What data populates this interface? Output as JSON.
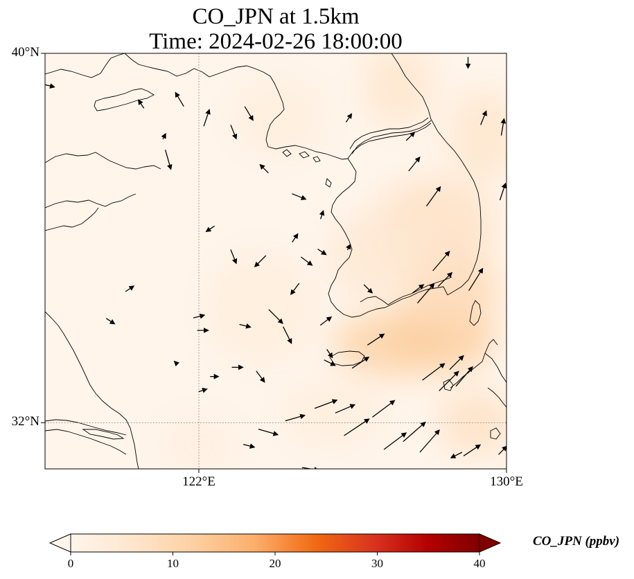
{
  "title": {
    "line1": "CO_JPN at 1.5km",
    "line2": "Time: 2024-02-26 18:00:00"
  },
  "map": {
    "lon_range": [
      118,
      130
    ],
    "lat_range": [
      31,
      40
    ],
    "lat_ticks": [
      {
        "value": 40,
        "label": "40°N"
      },
      {
        "value": 32,
        "label": "32°N"
      }
    ],
    "lon_ticks": [
      {
        "value": 122,
        "label": "122°E"
      },
      {
        "value": 130,
        "label": "130°E"
      }
    ],
    "gridlines": {
      "lon": [
        122
      ],
      "lat": [
        32
      ]
    },
    "colors": {
      "low": "#fff5eb",
      "high": "#7f0000",
      "coast": "#000000"
    }
  },
  "colorbar": {
    "label": "CO_JPN (ppbv)",
    "min": 0,
    "max": 40,
    "extend": "both",
    "ticks": [
      {
        "value": 0,
        "label": "0"
      },
      {
        "value": 10,
        "label": "10"
      },
      {
        "value": 20,
        "label": "20"
      },
      {
        "value": 30,
        "label": "30"
      },
      {
        "value": 40,
        "label": "40"
      }
    ],
    "stops": [
      {
        "value": 0,
        "color": "#fff5eb"
      },
      {
        "value": 6,
        "color": "#fee6ce"
      },
      {
        "value": 12,
        "color": "#fdd0a2"
      },
      {
        "value": 18,
        "color": "#fdae6b"
      },
      {
        "value": 24,
        "color": "#f16913"
      },
      {
        "value": 30,
        "color": "#d7301f"
      },
      {
        "value": 35,
        "color": "#b30000"
      },
      {
        "value": 40,
        "color": "#7f0000"
      }
    ]
  },
  "concentration_blobs": [
    {
      "lon": 127.1,
      "lat": 33.7,
      "rlon": 1.6,
      "rlat": 0.7,
      "value": 11
    },
    {
      "lon": 128.3,
      "lat": 33.9,
      "rlon": 1.4,
      "rlat": 0.8,
      "value": 12
    },
    {
      "lon": 128.6,
      "lat": 34.9,
      "rlon": 1.2,
      "rlat": 0.9,
      "value": 9
    },
    {
      "lon": 128.1,
      "lat": 36.2,
      "rlon": 1.6,
      "rlat": 1.1,
      "value": 7
    },
    {
      "lon": 127.2,
      "lat": 39.3,
      "rlon": 0.9,
      "rlat": 0.9,
      "value": 6
    },
    {
      "lon": 129.4,
      "lat": 38.2,
      "rlon": 0.9,
      "rlat": 1.0,
      "value": 6
    },
    {
      "lon": 129.2,
      "lat": 32.0,
      "rlon": 1.0,
      "rlat": 0.7,
      "value": 7
    },
    {
      "lon": 126.6,
      "lat": 35.6,
      "rlon": 1.2,
      "rlat": 1.0,
      "value": 5
    },
    {
      "lon": 123.6,
      "lat": 34.5,
      "rlon": 1.4,
      "rlat": 1.2,
      "value": 3
    },
    {
      "lon": 124.1,
      "lat": 38.6,
      "rlon": 1.2,
      "rlat": 0.8,
      "value": 3
    },
    {
      "lon": 122.0,
      "lat": 31.5,
      "rlon": 1.0,
      "rlat": 0.6,
      "value": 2.5
    },
    {
      "lon": 125.5,
      "lat": 32.2,
      "rlon": 1.3,
      "rlat": 0.7,
      "value": 3
    }
  ],
  "wind_vectors": [
    {
      "lon": 118.1,
      "lat": 39.3,
      "u": 0.4,
      "v": -0.1
    },
    {
      "lon": 121.1,
      "lat": 38.2,
      "u": 0.1,
      "v": 0.2
    },
    {
      "lon": 121.5,
      "lat": 39.0,
      "u": -0.3,
      "v": 0.5
    },
    {
      "lon": 122.2,
      "lat": 38.6,
      "u": 0.2,
      "v": 0.6
    },
    {
      "lon": 122.9,
      "lat": 38.3,
      "u": 0.2,
      "v": -0.5
    },
    {
      "lon": 123.3,
      "lat": 38.7,
      "u": 0.3,
      "v": -0.5
    },
    {
      "lon": 120.5,
      "lat": 38.9,
      "u": -0.2,
      "v": 0.3
    },
    {
      "lon": 123.7,
      "lat": 37.5,
      "u": -0.3,
      "v": 0.3
    },
    {
      "lon": 121.2,
      "lat": 37.7,
      "u": 0.2,
      "v": -0.7
    },
    {
      "lon": 124.6,
      "lat": 36.9,
      "u": 0.5,
      "v": -0.2
    },
    {
      "lon": 124.5,
      "lat": 36.0,
      "u": 0.2,
      "v": 0.3
    },
    {
      "lon": 124.8,
      "lat": 35.5,
      "u": 0.4,
      "v": -0.3
    },
    {
      "lon": 125.2,
      "lat": 35.7,
      "u": 0.3,
      "v": -0.2
    },
    {
      "lon": 122.3,
      "lat": 36.2,
      "u": -0.3,
      "v": -0.2
    },
    {
      "lon": 122.9,
      "lat": 35.6,
      "u": 0.2,
      "v": -0.5
    },
    {
      "lon": 123.6,
      "lat": 35.5,
      "u": -0.4,
      "v": -0.4
    },
    {
      "lon": 124.5,
      "lat": 34.9,
      "u": -0.3,
      "v": -0.4
    },
    {
      "lon": 126.4,
      "lat": 34.9,
      "u": 0.3,
      "v": -0.3
    },
    {
      "lon": 123.2,
      "lat": 34.1,
      "u": 0.4,
      "v": -0.1
    },
    {
      "lon": 124.0,
      "lat": 34.3,
      "u": 0.5,
      "v": -0.5
    },
    {
      "lon": 124.3,
      "lat": 33.9,
      "u": 0.3,
      "v": -0.6
    },
    {
      "lon": 125.3,
      "lat": 34.2,
      "u": 0.4,
      "v": 0.3
    },
    {
      "lon": 125.4,
      "lat": 33.5,
      "u": 0.2,
      "v": -0.3
    },
    {
      "lon": 125.4,
      "lat": 33.3,
      "u": 0.4,
      "v": -0.2
    },
    {
      "lon": 122.1,
      "lat": 34.0,
      "u": 0.4,
      "v": 0.0
    },
    {
      "lon": 122.0,
      "lat": 34.3,
      "u": 0.4,
      "v": 0.1
    },
    {
      "lon": 119.7,
      "lat": 34.2,
      "u": 0.3,
      "v": -0.2
    },
    {
      "lon": 120.2,
      "lat": 34.9,
      "u": 0.3,
      "v": 0.2
    },
    {
      "lon": 121.4,
      "lat": 33.3,
      "u": -0.1,
      "v": 0.1
    },
    {
      "lon": 122.4,
      "lat": 33.0,
      "u": 0.3,
      "v": 0.0
    },
    {
      "lon": 123.0,
      "lat": 33.2,
      "u": 0.4,
      "v": 0.0
    },
    {
      "lon": 123.6,
      "lat": 33.0,
      "u": 0.3,
      "v": -0.4
    },
    {
      "lon": 122.1,
      "lat": 32.7,
      "u": 0.3,
      "v": 0.1
    },
    {
      "lon": 123.3,
      "lat": 31.5,
      "u": 0.4,
      "v": -0.1
    },
    {
      "lon": 123.8,
      "lat": 31.8,
      "u": 0.7,
      "v": -0.2
    },
    {
      "lon": 124.9,
      "lat": 31.0,
      "u": 0.6,
      "v": -0.1
    },
    {
      "lon": 124.5,
      "lat": 32.1,
      "u": 0.7,
      "v": 0.2
    },
    {
      "lon": 125.3,
      "lat": 32.4,
      "u": 0.8,
      "v": 0.3
    },
    {
      "lon": 125.8,
      "lat": 32.3,
      "u": 0.7,
      "v": 0.3
    },
    {
      "lon": 126.1,
      "lat": 31.9,
      "u": 0.9,
      "v": 0.6
    },
    {
      "lon": 126.8,
      "lat": 32.3,
      "u": 0.8,
      "v": 0.6
    },
    {
      "lon": 127.1,
      "lat": 31.6,
      "u": 0.8,
      "v": 0.6
    },
    {
      "lon": 127.6,
      "lat": 31.8,
      "u": 0.8,
      "v": 0.7
    },
    {
      "lon": 128.0,
      "lat": 31.6,
      "u": 0.7,
      "v": 0.8
    },
    {
      "lon": 129.1,
      "lat": 31.4,
      "u": 0.6,
      "v": 0.4
    },
    {
      "lon": 129.9,
      "lat": 31.4,
      "u": 0.3,
      "v": 0.3
    },
    {
      "lon": 128.7,
      "lat": 31.3,
      "u": -0.4,
      "v": -0.2
    },
    {
      "lon": 126.6,
      "lat": 33.8,
      "u": 0.6,
      "v": 0.4
    },
    {
      "lon": 126.2,
      "lat": 33.3,
      "u": 0.6,
      "v": 0.4
    },
    {
      "lon": 128.1,
      "lat": 33.1,
      "u": 0.8,
      "v": 0.6
    },
    {
      "lon": 128.5,
      "lat": 32.9,
      "u": 0.7,
      "v": 0.7
    },
    {
      "lon": 128.9,
      "lat": 33.0,
      "u": 0.6,
      "v": 0.7
    },
    {
      "lon": 128.7,
      "lat": 33.3,
      "u": 0.5,
      "v": 0.5
    },
    {
      "lon": 128.3,
      "lat": 35.5,
      "u": 0.6,
      "v": 0.7
    },
    {
      "lon": 128.4,
      "lat": 35.1,
      "u": 0.5,
      "v": 0.5
    },
    {
      "lon": 127.7,
      "lat": 34.9,
      "u": 0.4,
      "v": 0.3
    },
    {
      "lon": 127.9,
      "lat": 34.8,
      "u": 0.6,
      "v": 0.7
    },
    {
      "lon": 129.2,
      "lat": 35.1,
      "u": 0.5,
      "v": 0.8
    },
    {
      "lon": 128.1,
      "lat": 36.9,
      "u": 0.5,
      "v": 0.7
    },
    {
      "lon": 127.6,
      "lat": 37.6,
      "u": 0.4,
      "v": 0.5
    },
    {
      "lon": 127.5,
      "lat": 38.2,
      "u": 0.3,
      "v": 0.3
    },
    {
      "lon": 129.4,
      "lat": 38.6,
      "u": 0.2,
      "v": 0.5
    },
    {
      "lon": 129.9,
      "lat": 38.4,
      "u": 0.1,
      "v": 0.6
    },
    {
      "lon": 129.9,
      "lat": 37.0,
      "u": 0.2,
      "v": 0.6
    },
    {
      "lon": 129.0,
      "lat": 39.8,
      "u": 0.0,
      "v": -0.4
    },
    {
      "lon": 125.9,
      "lat": 35.8,
      "u": 0.1,
      "v": 0.2
    },
    {
      "lon": 125.2,
      "lat": 36.5,
      "u": 0.1,
      "v": 0.3
    },
    {
      "lon": 125.9,
      "lat": 38.6,
      "u": 0.2,
      "v": 0.3
    }
  ]
}
